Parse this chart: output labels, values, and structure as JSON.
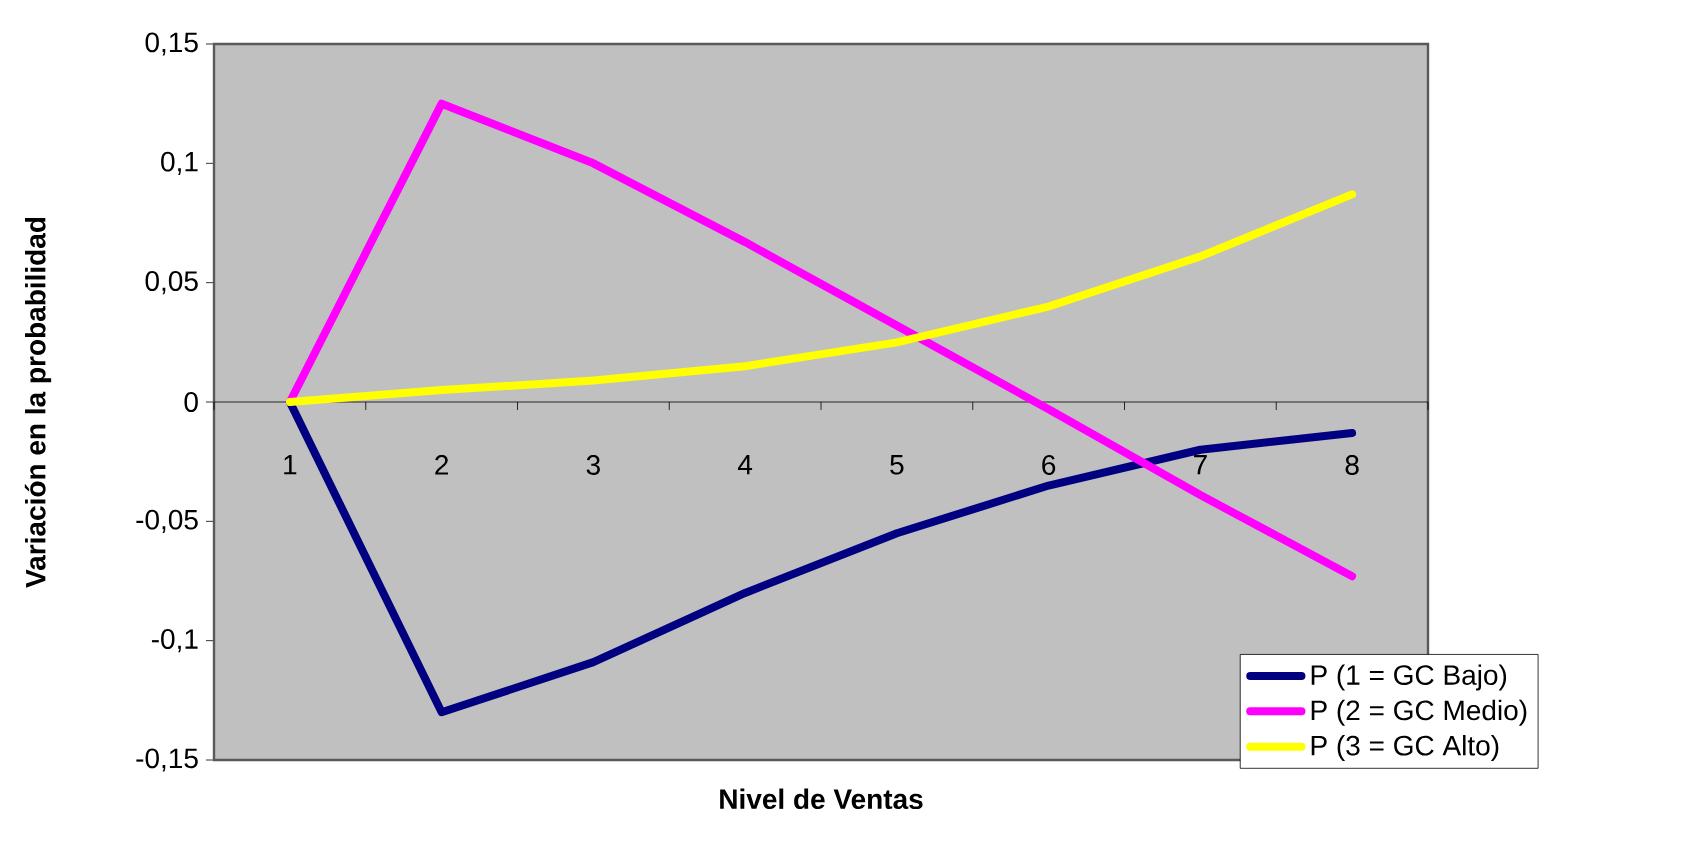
{
  "chart_data": {
    "type": "line",
    "xlabel": "Nivel de Ventas",
    "ylabel": "Variación en la probabilidad",
    "categories": [
      "1",
      "2",
      "3",
      "4",
      "5",
      "6",
      "7",
      "8"
    ],
    "series": [
      {
        "name": "P (1 = GC Bajo)",
        "color": "#000080",
        "values": [
          0,
          -0.13,
          -0.109,
          -0.08,
          -0.055,
          -0.035,
          -0.02,
          -0.013
        ]
      },
      {
        "name": "P (2 = GC Medio)",
        "color": "#ff00ff",
        "values": [
          0,
          0.125,
          0.1,
          0.067,
          0.032,
          -0.003,
          -0.039,
          -0.073
        ]
      },
      {
        "name": "P (3 = GC Alto)",
        "color": "#ffff00",
        "values": [
          0,
          0.005,
          0.009,
          0.015,
          0.025,
          0.04,
          0.061,
          0.087
        ]
      }
    ],
    "ylim": [
      -0.15,
      0.15
    ],
    "yticks": [
      {
        "value": -0.15,
        "label": "-0,15"
      },
      {
        "value": -0.1,
        "label": "-0,1"
      },
      {
        "value": -0.05,
        "label": "-0,05"
      },
      {
        "value": 0,
        "label": "0"
      },
      {
        "value": 0.05,
        "label": "0,05"
      },
      {
        "value": 0.1,
        "label": "0,1"
      },
      {
        "value": 0.15,
        "label": "0,15"
      }
    ],
    "legend": "bottom right",
    "marker": "none",
    "line_style": "solid"
  }
}
